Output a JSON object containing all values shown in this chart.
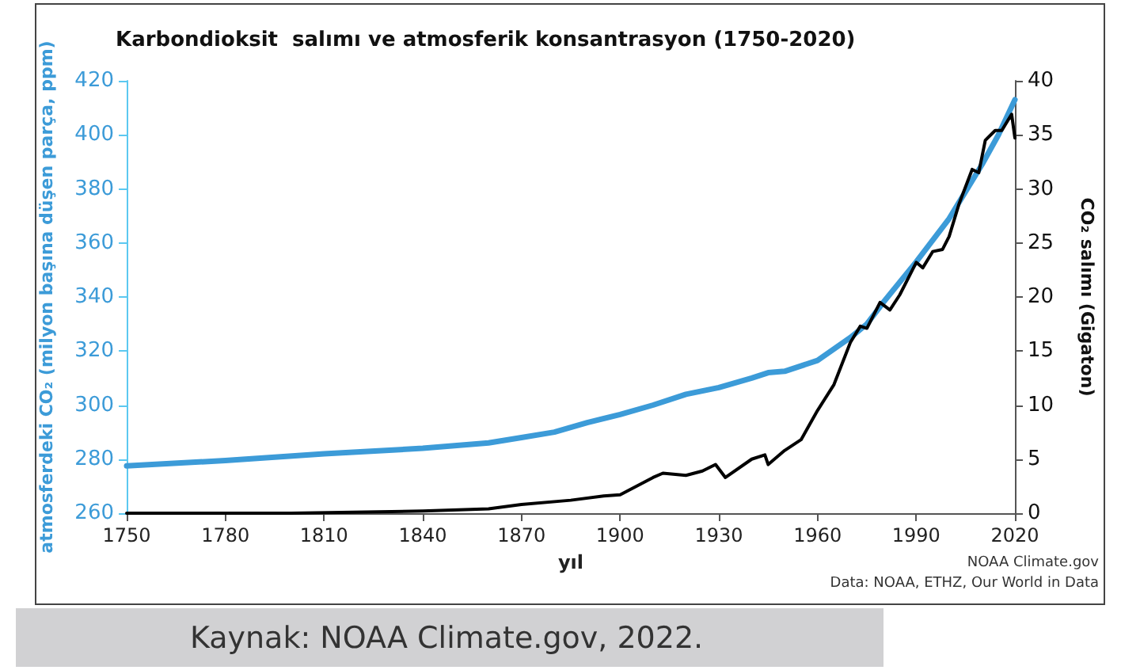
{
  "chart_data": {
    "type": "line",
    "title": "Karbondioksit  salımı ve atmosferik konsantrasyon (1750-2020)",
    "xlabel": "yıl",
    "ylabel": "atmosferdeki CO₂ (milyon başına düşen parça, ppm)",
    "y2label": "CO₂ salımı (Gigaton)",
    "xlim": [
      1750,
      2020
    ],
    "xticks": [
      1750,
      1780,
      1810,
      1840,
      1870,
      1900,
      1930,
      1960,
      1990,
      2020
    ],
    "ylim": [
      260,
      420
    ],
    "yticks": [
      260,
      280,
      300,
      320,
      340,
      360,
      380,
      400,
      420
    ],
    "y2lim": [
      0,
      40
    ],
    "y2ticks": [
      0,
      5,
      10,
      15,
      20,
      25,
      30,
      35,
      40
    ],
    "grid": false,
    "marker": "none",
    "line_style": "solid",
    "series": [
      {
        "color": "#3c9bd8",
        "x": [
          1750,
          1780,
          1810,
          1840,
          1860,
          1870,
          1880,
          1890,
          1900,
          1910,
          1920,
          1930,
          1940,
          1945,
          1950,
          1960,
          1970,
          1975,
          1980,
          1990,
          2000,
          2005,
          2010,
          2015,
          2020
        ],
        "values": [
          277.5,
          279.5,
          282,
          284,
          286,
          288,
          290,
          293.5,
          296.5,
          300,
          304,
          306.5,
          310,
          312,
          312.5,
          316.5,
          325,
          330,
          338,
          353,
          369,
          379,
          389,
          400,
          413
        ]
      },
      {
        "color": "#000000",
        "axis": "y2",
        "x": [
          1750,
          1800,
          1840,
          1860,
          1870,
          1885,
          1895,
          1900,
          1910,
          1913,
          1920,
          1925,
          1929,
          1932,
          1940,
          1944,
          1945,
          1950,
          1955,
          1960,
          1965,
          1970,
          1973,
          1975,
          1979,
          1982,
          1985,
          1990,
          1992,
          1995,
          1998,
          2000,
          2003,
          2007,
          2009,
          2011,
          2014,
          2016,
          2019,
          2020
        ],
        "values": [
          0,
          0,
          0.2,
          0.4,
          0.8,
          1.2,
          1.6,
          1.7,
          3.3,
          3.7,
          3.5,
          3.9,
          4.5,
          3.3,
          5.0,
          5.4,
          4.5,
          5.8,
          6.8,
          9.5,
          11.9,
          15.8,
          17.3,
          17.1,
          19.5,
          18.8,
          20.2,
          23.2,
          22.7,
          24.2,
          24.4,
          25.6,
          28.6,
          31.8,
          31.5,
          34.5,
          35.4,
          35.4,
          36.9,
          34.7
        ]
      }
    ],
    "annotations": [
      "NOAA Climate.gov",
      "Data: NOAA, ETHZ, Our World in Data",
      "Kaynak: NOAA Climate.gov, 2022."
    ]
  }
}
